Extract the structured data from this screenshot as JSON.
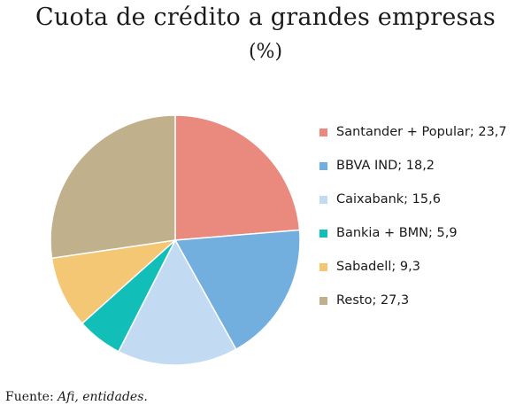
{
  "title": "Cuota de crédito a grandes empresas",
  "subtitle": "(%)",
  "source": {
    "prefix": "Fuente:",
    "text": "Afi, entidades."
  },
  "chart_data": {
    "type": "pie",
    "title": "Cuota de crédito a grandes empresas",
    "subtitle": "(%)",
    "legend_position": "right",
    "slices": [
      {
        "label": "Santander + Popular",
        "value": 23.7,
        "legend": "Santander + Popular; 23,7",
        "color": "#ea8a7e"
      },
      {
        "label": "BBVA IND",
        "value": 18.2,
        "legend": "BBVA IND; 18,2",
        "color": "#72aede"
      },
      {
        "label": "Caixabank",
        "value": 15.6,
        "legend": "Caixabank; 15,6",
        "color": "#c2dbf2"
      },
      {
        "label": "Bankia + BMN",
        "value": 5.9,
        "legend": "Bankia + BMN; 5,9",
        "color": "#12bfb8"
      },
      {
        "label": "Sabadell",
        "value": 9.3,
        "legend": "Sabadell; 9,3",
        "color": "#f4c774"
      },
      {
        "label": "Resto",
        "value": 27.3,
        "legend": "Resto; 27,3",
        "color": "#c1b08c"
      }
    ]
  }
}
